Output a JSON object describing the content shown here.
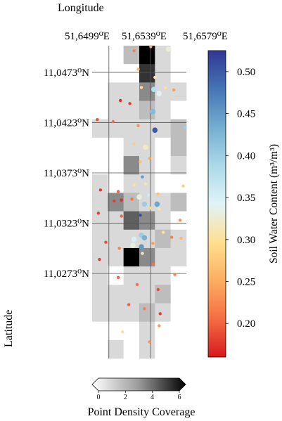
{
  "map": {
    "x_title": "Longitude",
    "y_title": "Latitude",
    "lon_ticks": [
      "51,6499⁰E",
      "51,6539⁰E",
      "51,6579⁰E"
    ],
    "lat_ticks": [
      "11,0473⁰N",
      "11,0423⁰N",
      "11,0373⁰N",
      "11,0323⁰N",
      "11,0273⁰N"
    ],
    "grid": {
      "cols": 6,
      "rows": 17,
      "density": [
        [
          0,
          0,
          2,
          6,
          1,
          0
        ],
        [
          0,
          0,
          0,
          5,
          1,
          0
        ],
        [
          0,
          1,
          1,
          3,
          1,
          1
        ],
        [
          0,
          1,
          1,
          2,
          1,
          0
        ],
        [
          1,
          1,
          1,
          1,
          1,
          2
        ],
        [
          0,
          0,
          1,
          1,
          0,
          2
        ],
        [
          0,
          0,
          3,
          1,
          0,
          1
        ],
        [
          1,
          0,
          1,
          1,
          0,
          0
        ],
        [
          1,
          3,
          2,
          1,
          1,
          2
        ],
        [
          1,
          1,
          4,
          3,
          1,
          0
        ],
        [
          1,
          1,
          1,
          1,
          2,
          1
        ],
        [
          1,
          1,
          6,
          3,
          1,
          1
        ],
        [
          1,
          0,
          1,
          1,
          1,
          0
        ],
        [
          1,
          1,
          1,
          1,
          2,
          0
        ],
        [
          1,
          1,
          1,
          2,
          1,
          0
        ],
        [
          0,
          0,
          0,
          1,
          0,
          0
        ],
        [
          0,
          1,
          0,
          1,
          0,
          0
        ]
      ]
    },
    "points": [
      {
        "lon": 51.6523,
        "lat": 11.04945,
        "swc": 0.22,
        "big": false
      },
      {
        "lon": 51.6539,
        "lat": 11.04985,
        "swc": 0.25,
        "big": false
      },
      {
        "lon": 51.6556,
        "lat": 11.0496,
        "swc": 0.33,
        "big": true
      },
      {
        "lon": 51.6527,
        "lat": 11.0476,
        "swc": 0.26,
        "big": false
      },
      {
        "lon": 51.6543,
        "lat": 11.0468,
        "swc": 0.31,
        "big": false
      },
      {
        "lon": 51.651,
        "lat": 11.0445,
        "swc": 0.17,
        "big": false
      },
      {
        "lon": 51.653,
        "lat": 11.0458,
        "swc": 0.29,
        "big": false
      },
      {
        "lon": 51.6542,
        "lat": 11.0456,
        "swc": 0.38,
        "big": true
      },
      {
        "lon": 51.6547,
        "lat": 11.0452,
        "swc": 0.34,
        "big": true
      },
      {
        "lon": 51.6553,
        "lat": 11.04575,
        "swc": 0.3,
        "big": false
      },
      {
        "lon": 51.6561,
        "lat": 11.04555,
        "swc": 0.24,
        "big": false
      },
      {
        "lon": 51.6519,
        "lat": 11.0442,
        "swc": 0.18,
        "big": false
      },
      {
        "lon": 51.6541,
        "lat": 11.0434,
        "swc": 0.42,
        "big": true
      },
      {
        "lon": 51.6488,
        "lat": 11.0426,
        "swc": 0.19,
        "big": false
      },
      {
        "lon": 51.6503,
        "lat": 11.0424,
        "swc": 0.21,
        "big": false
      },
      {
        "lon": 51.6527,
        "lat": 11.042,
        "swc": 0.23,
        "big": false
      },
      {
        "lon": 51.6543,
        "lat": 11.04155,
        "swc": 0.5,
        "big": true
      },
      {
        "lon": 51.6572,
        "lat": 11.0418,
        "swc": 0.4,
        "big": false
      },
      {
        "lon": 51.6523,
        "lat": 11.0402,
        "swc": 0.28,
        "big": false
      },
      {
        "lon": 51.6534,
        "lat": 11.03985,
        "swc": 0.32,
        "big": true
      },
      {
        "lon": 51.6538,
        "lat": 11.03875,
        "swc": 0.25,
        "big": false
      },
      {
        "lon": 51.6529,
        "lat": 11.0384,
        "swc": 0.27,
        "big": false
      },
      {
        "lon": 51.6491,
        "lat": 11.0356,
        "swc": 0.18,
        "big": false
      },
      {
        "lon": 51.6508,
        "lat": 11.03545,
        "swc": 0.2,
        "big": false
      },
      {
        "lon": 51.6523,
        "lat": 11.0361,
        "swc": 0.3,
        "big": false
      },
      {
        "lon": 51.6534,
        "lat": 11.0362,
        "swc": 0.31,
        "big": false
      },
      {
        "lon": 51.6531,
        "lat": 11.0369,
        "swc": 0.45,
        "big": false
      },
      {
        "lon": 51.657,
        "lat": 11.036,
        "swc": 0.28,
        "big": false
      },
      {
        "lon": 51.6504,
        "lat": 11.0345,
        "swc": 0.18,
        "big": false
      },
      {
        "lon": 51.6511,
        "lat": 11.0346,
        "swc": 0.17,
        "big": false
      },
      {
        "lon": 51.6521,
        "lat": 11.0347,
        "swc": 0.21,
        "big": false
      },
      {
        "lon": 51.6528,
        "lat": 11.0349,
        "swc": 0.33,
        "big": true
      },
      {
        "lon": 51.6537,
        "lat": 11.0351,
        "swc": 0.36,
        "big": false
      },
      {
        "lon": 51.6546,
        "lat": 11.0352,
        "swc": 0.27,
        "big": false
      },
      {
        "lon": 51.6533,
        "lat": 11.0342,
        "swc": 0.4,
        "big": true
      },
      {
        "lon": 51.6545,
        "lat": 11.0342,
        "swc": 0.44,
        "big": true
      },
      {
        "lon": 51.6539,
        "lat": 11.0338,
        "swc": 0.29,
        "big": false
      },
      {
        "lon": 51.6529,
        "lat": 11.0331,
        "swc": 0.51,
        "big": false
      },
      {
        "lon": 51.6547,
        "lat": 11.0337,
        "swc": 0.31,
        "big": false
      },
      {
        "lon": 51.6489,
        "lat": 11.0333,
        "swc": 0.18,
        "big": false
      },
      {
        "lon": 51.6511,
        "lat": 11.033,
        "swc": 0.2,
        "big": false
      },
      {
        "lon": 51.6567,
        "lat": 11.0326,
        "swc": 0.23,
        "big": false
      },
      {
        "lon": 51.653,
        "lat": 11.0311,
        "swc": 0.4,
        "big": true
      },
      {
        "lon": 51.6523,
        "lat": 11.0307,
        "swc": 0.35,
        "big": true
      },
      {
        "lon": 51.6533,
        "lat": 11.03085,
        "swc": 0.43,
        "big": true
      },
      {
        "lon": 51.6522,
        "lat": 11.0301,
        "swc": 0.33,
        "big": true
      },
      {
        "lon": 51.653,
        "lat": 11.02995,
        "swc": 0.45,
        "big": true
      },
      {
        "lon": 51.6541,
        "lat": 11.0303,
        "swc": 0.24,
        "big": false
      },
      {
        "lon": 51.6551,
        "lat": 11.0314,
        "swc": 0.3,
        "big": false
      },
      {
        "lon": 51.6559,
        "lat": 11.0309,
        "swc": 0.22,
        "big": false
      },
      {
        "lon": 51.6568,
        "lat": 11.0308,
        "swc": 0.26,
        "big": false
      },
      {
        "lon": 51.6496,
        "lat": 11.0304,
        "swc": 0.19,
        "big": false
      },
      {
        "lon": 51.6509,
        "lat": 11.0298,
        "swc": 0.22,
        "big": false
      },
      {
        "lon": 51.6531,
        "lat": 11.0293,
        "swc": 0.32,
        "big": false
      },
      {
        "lon": 51.6541,
        "lat": 11.0282,
        "swc": 0.21,
        "big": false
      },
      {
        "lon": 51.649,
        "lat": 11.0287,
        "swc": 0.18,
        "big": false
      },
      {
        "lon": 51.6562,
        "lat": 11.0272,
        "swc": 0.22,
        "big": false
      },
      {
        "lon": 51.6508,
        "lat": 11.0269,
        "swc": 0.2,
        "big": false
      },
      {
        "lon": 51.6526,
        "lat": 11.0262,
        "swc": 0.21,
        "big": false
      },
      {
        "lon": 51.6546,
        "lat": 11.0257,
        "swc": 0.19,
        "big": false
      },
      {
        "lon": 51.6518,
        "lat": 11.0242,
        "swc": 0.2,
        "big": false
      },
      {
        "lon": 51.6533,
        "lat": 11.0238,
        "swc": 0.22,
        "big": false
      },
      {
        "lon": 51.6548,
        "lat": 11.0233,
        "swc": 0.18,
        "big": false
      },
      {
        "lon": 51.6512,
        "lat": 11.0215,
        "swc": 0.3,
        "big": false
      },
      {
        "lon": 51.6538,
        "lat": 11.0205,
        "swc": 0.23,
        "big": false
      },
      {
        "lon": 51.6547,
        "lat": 11.0221,
        "swc": 0.24,
        "big": false
      }
    ]
  },
  "colorbar": {
    "title": "Soil Water Content (m³/m³)",
    "tick_labels": [
      "0.20",
      "0.25",
      "0.30",
      "0.35",
      "0.40",
      "0.45",
      "0.50"
    ],
    "min": 0.16,
    "max": 0.525,
    "colors": [
      "#d7191c",
      "#f46d43",
      "#fdae61",
      "#fee090",
      "#e0f3f8",
      "#abd9e9",
      "#74add1",
      "#4575b4",
      "#313695"
    ]
  },
  "density_legend": {
    "title": "Point Density Coverage",
    "tick_labels": [
      "0",
      "2",
      "4",
      "6"
    ]
  }
}
